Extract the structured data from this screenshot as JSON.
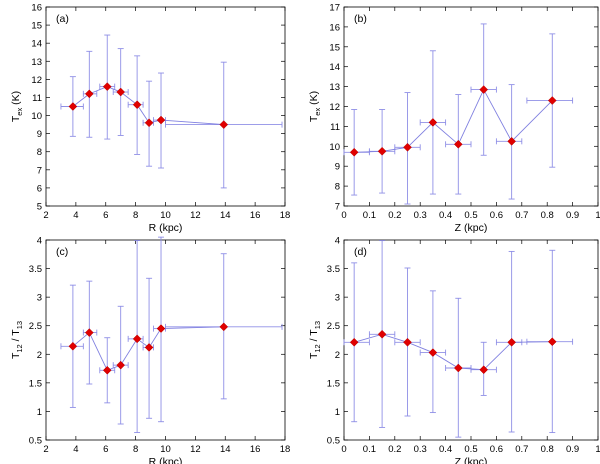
{
  "colors": {
    "line": "#8080e0",
    "errorbar": "#8f8fe6",
    "marker": "#e00000"
  },
  "chart_data": [
    {
      "type": "scatter",
      "panel": "(a)",
      "xlabel": "R (kpc)",
      "ylabel_main": "T",
      "ylabel_sub": "ex",
      "ylabel_unit": " (K)",
      "xlim": [
        2,
        18
      ],
      "ylim": [
        5,
        16
      ],
      "xticks": [
        2,
        4,
        6,
        8,
        10,
        12,
        14,
        16,
        18
      ],
      "yticks": [
        5,
        6,
        7,
        8,
        9,
        10,
        11,
        12,
        13,
        14,
        15,
        16
      ],
      "x": [
        3.8,
        4.9,
        6.1,
        7.0,
        8.1,
        8.9,
        9.7,
        13.9
      ],
      "y": [
        10.5,
        11.2,
        11.6,
        11.3,
        10.6,
        9.6,
        9.75,
        9.5
      ],
      "y_low": [
        8.85,
        8.8,
        8.7,
        8.9,
        7.85,
        7.2,
        7.1,
        6.0
      ],
      "y_high": [
        12.15,
        13.55,
        14.45,
        13.7,
        13.3,
        11.9,
        12.35,
        12.95
      ],
      "x_low": [
        3.0,
        4.5,
        5.6,
        6.5,
        7.5,
        8.5,
        9.2,
        10.0
      ],
      "x_high": [
        4.5,
        5.4,
        6.6,
        7.5,
        8.5,
        9.2,
        10.0,
        17.8
      ]
    },
    {
      "type": "scatter",
      "panel": "(b)",
      "xlabel": "Z (kpc)",
      "ylabel_main": "T",
      "ylabel_sub": "ex",
      "ylabel_unit": " (K)",
      "xlim": [
        0,
        1
      ],
      "ylim": [
        7,
        17
      ],
      "xticks": [
        0,
        0.1,
        0.2,
        0.3,
        0.4,
        0.5,
        0.6,
        0.7,
        0.8,
        0.9,
        1
      ],
      "xticklabels": [
        "0",
        "0.1",
        "0.2",
        "0.3",
        "0.4",
        "0.5",
        "0.6",
        "0.7",
        "0.8",
        "0.9",
        "1"
      ],
      "yticks": [
        7,
        8,
        9,
        10,
        11,
        12,
        13,
        14,
        15,
        16,
        17
      ],
      "x": [
        0.04,
        0.15,
        0.25,
        0.35,
        0.45,
        0.55,
        0.66,
        0.82
      ],
      "y": [
        9.7,
        9.75,
        9.95,
        11.2,
        10.1,
        12.85,
        10.25,
        12.3
      ],
      "y_low": [
        7.55,
        7.65,
        7.1,
        7.6,
        7.6,
        9.55,
        7.35,
        8.95
      ],
      "y_high": [
        11.85,
        11.85,
        12.7,
        14.8,
        12.6,
        16.15,
        13.1,
        15.65
      ],
      "x_low": [
        0.0,
        0.1,
        0.2,
        0.3,
        0.4,
        0.5,
        0.6,
        0.72
      ],
      "x_high": [
        0.1,
        0.2,
        0.3,
        0.4,
        0.5,
        0.6,
        0.7,
        0.9
      ]
    },
    {
      "type": "scatter",
      "panel": "(c)",
      "xlabel": "R (kpc)",
      "ylabel_main": "T",
      "ylabel_sub": "12",
      "ylabel_mid": " / T",
      "ylabel_sub2": "13",
      "xlim": [
        2,
        18
      ],
      "ylim": [
        0.5,
        4
      ],
      "xticks": [
        2,
        4,
        6,
        8,
        10,
        12,
        14,
        16,
        18
      ],
      "yticks": [
        0.5,
        1,
        1.5,
        2,
        2.5,
        3,
        3.5,
        4
      ],
      "yticklabels": [
        "0.5",
        "1",
        "1.5",
        "2",
        "2.5",
        "3",
        "3.5",
        "4"
      ],
      "x": [
        3.8,
        4.9,
        6.1,
        7.0,
        8.1,
        8.9,
        9.7,
        13.9
      ],
      "y": [
        2.14,
        2.38,
        1.72,
        1.81,
        2.27,
        2.12,
        2.45,
        2.48
      ],
      "y_low": [
        1.07,
        1.48,
        1.15,
        0.78,
        0.63,
        0.88,
        0.82,
        1.22
      ],
      "y_high": [
        3.21,
        3.28,
        2.29,
        2.84,
        3.99,
        3.33,
        4.05,
        3.76
      ],
      "x_low": [
        3.0,
        4.5,
        5.6,
        6.5,
        7.5,
        8.5,
        9.2,
        10.0
      ],
      "x_high": [
        4.5,
        5.4,
        6.6,
        7.5,
        8.5,
        9.2,
        10.0,
        17.8
      ]
    },
    {
      "type": "scatter",
      "panel": "(d)",
      "xlabel": "Z (kpc)",
      "ylabel_main": "T",
      "ylabel_sub": "12",
      "ylabel_mid": " / T",
      "ylabel_sub2": "13",
      "xlim": [
        0,
        1
      ],
      "ylim": [
        0.5,
        4
      ],
      "xticks": [
        0,
        0.1,
        0.2,
        0.3,
        0.4,
        0.5,
        0.6,
        0.7,
        0.8,
        0.9,
        1
      ],
      "xticklabels": [
        "0",
        "0.1",
        "0.2",
        "0.3",
        "0.4",
        "0.5",
        "0.6",
        "0.7",
        "0.8",
        "0.9",
        "1"
      ],
      "yticks": [
        0.5,
        1,
        1.5,
        2,
        2.5,
        3,
        3.5,
        4
      ],
      "yticklabels": [
        "0.5",
        "1",
        "1.5",
        "2",
        "2.5",
        "3",
        "3.5",
        "4"
      ],
      "x": [
        0.04,
        0.15,
        0.25,
        0.35,
        0.45,
        0.55,
        0.66,
        0.82
      ],
      "y": [
        2.21,
        2.35,
        2.21,
        2.03,
        1.76,
        1.73,
        2.21,
        2.22
      ],
      "y_low": [
        0.82,
        0.72,
        0.92,
        0.98,
        0.55,
        1.28,
        0.64,
        0.63
      ],
      "y_high": [
        3.6,
        3.99,
        3.51,
        3.11,
        2.98,
        2.21,
        3.8,
        3.82
      ],
      "x_low": [
        0.0,
        0.1,
        0.2,
        0.3,
        0.4,
        0.5,
        0.6,
        0.72
      ],
      "x_high": [
        0.1,
        0.2,
        0.3,
        0.4,
        0.5,
        0.6,
        0.7,
        0.9
      ]
    }
  ]
}
